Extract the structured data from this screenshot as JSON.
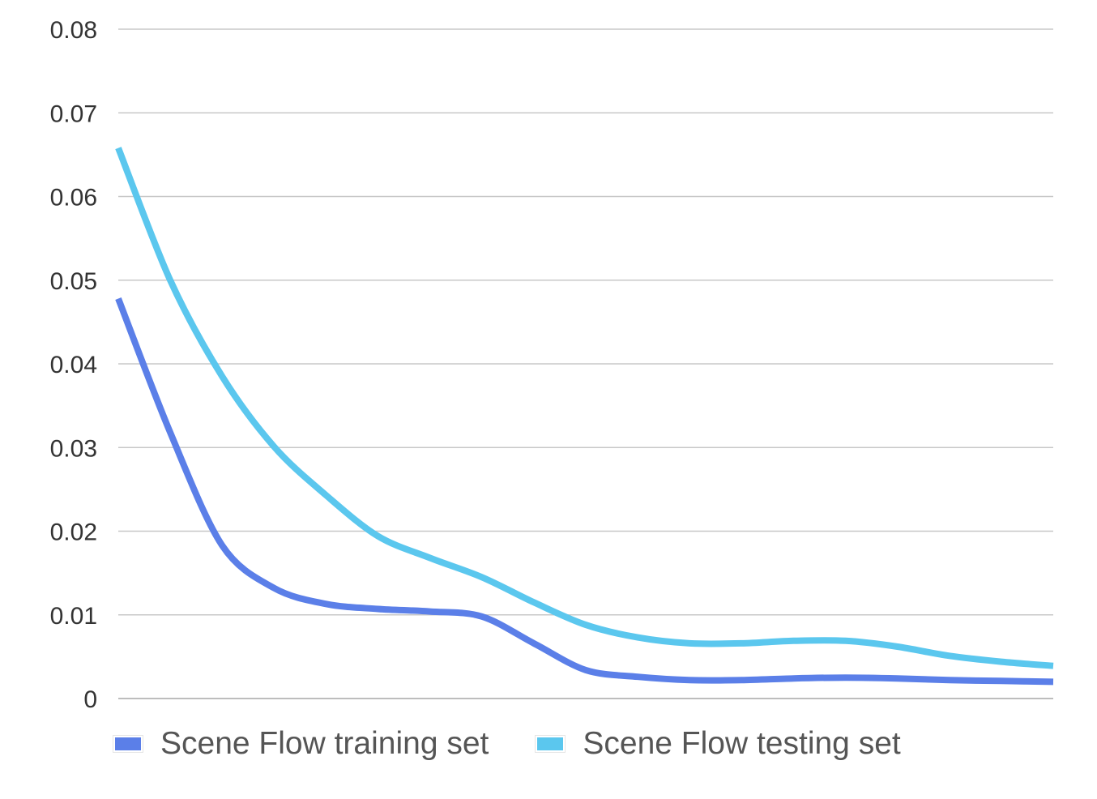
{
  "chart_data": {
    "type": "line",
    "title": "",
    "xlabel": "",
    "ylabel": "",
    "ylim": [
      0,
      0.08
    ],
    "yticks": [
      "0",
      "0.01",
      "0.02",
      "0.03",
      "0.04",
      "0.05",
      "0.06",
      "0.07",
      "0.08"
    ],
    "x": [
      1,
      2,
      3,
      4,
      5,
      6,
      7,
      8,
      9,
      10,
      11,
      12,
      13,
      14,
      15,
      16,
      17,
      18,
      19
    ],
    "grid": "horizontal",
    "legend": "bottom",
    "series": [
      {
        "name": "Scene Flow training set",
        "color": "#5b7fe8",
        "values": [
          0.0478,
          0.0318,
          0.0183,
          0.0132,
          0.0113,
          0.0107,
          0.0104,
          0.0098,
          0.0066,
          0.0034,
          0.0026,
          0.0022,
          0.0022,
          0.0024,
          0.0025,
          0.0024,
          0.0022,
          0.0021,
          0.002
        ]
      },
      {
        "name": "Scene Flow testing set",
        "color": "#5bc7ee",
        "values": [
          0.0658,
          0.05,
          0.0385,
          0.0301,
          0.0243,
          0.0194,
          0.0168,
          0.0145,
          0.0115,
          0.0088,
          0.0073,
          0.0066,
          0.0066,
          0.0069,
          0.0069,
          0.0062,
          0.0051,
          0.0044,
          0.0039
        ]
      }
    ]
  }
}
